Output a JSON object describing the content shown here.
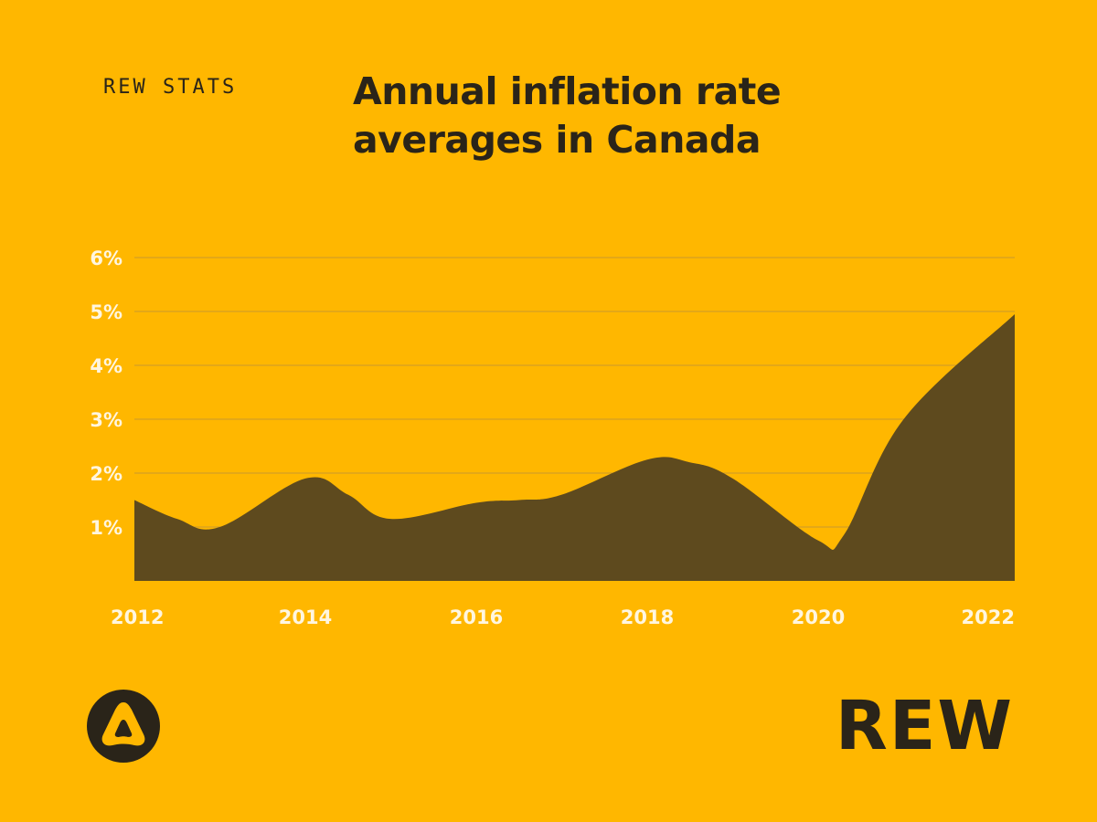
{
  "header": {
    "kicker": "REW STATS",
    "title_line1": "Annual inflation rate",
    "title_line2": "averages in Canada"
  },
  "brand": {
    "wordmark": "REW",
    "logo_icon": "triangle-logo-icon"
  },
  "colors": {
    "background": "#FFB700",
    "area_fill": "#5E4A1E",
    "text_dark": "#2a2419",
    "tick_text": "#FFF6E0",
    "gridline": "#C99A2E"
  },
  "chart_data": {
    "type": "area",
    "title": "Annual inflation rate averages in Canada",
    "xlabel": "",
    "ylabel": "",
    "x": [
      2012,
      2012.5,
      2013,
      2014,
      2014.5,
      2015,
      2016,
      2016.5,
      2017,
      2018,
      2018.5,
      2019,
      2020,
      2020.3,
      2021,
      2022.3
    ],
    "values": [
      1.5,
      1.15,
      1.0,
      1.9,
      1.6,
      1.15,
      1.45,
      1.5,
      1.6,
      2.25,
      2.2,
      1.9,
      0.75,
      0.85,
      3.0,
      4.95
    ],
    "ylim": [
      0,
      6
    ],
    "xlim": [
      2012,
      2022.3
    ],
    "y_ticks": [
      {
        "value": 1,
        "label": "1%"
      },
      {
        "value": 2,
        "label": "2%"
      },
      {
        "value": 3,
        "label": "3%"
      },
      {
        "value": 4,
        "label": "4%"
      },
      {
        "value": 5,
        "label": "5%"
      },
      {
        "value": 6,
        "label": "6%"
      }
    ],
    "x_ticks": [
      {
        "value": 2012,
        "label": "2012"
      },
      {
        "value": 2014,
        "label": "2014"
      },
      {
        "value": 2016,
        "label": "2016"
      },
      {
        "value": 2018,
        "label": "2018"
      },
      {
        "value": 2020,
        "label": "2020"
      },
      {
        "value": 2022,
        "label": "2022"
      }
    ],
    "grid": true
  }
}
